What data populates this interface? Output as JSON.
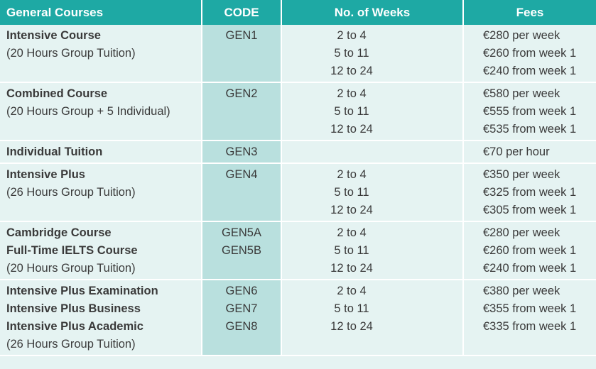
{
  "header": {
    "course": "General Courses",
    "code": "CODE",
    "weeks": "No. of Weeks",
    "fees": "Fees"
  },
  "rows": [
    {
      "courses": [
        {
          "text": "Intensive Course",
          "bold": true
        },
        {
          "text": "(20 Hours Group Tuition)",
          "bold": false
        }
      ],
      "codes": [
        "GEN1"
      ],
      "weeks": [
        "2 to 4",
        "5 to 11",
        "12 to 24"
      ],
      "fees": [
        "€280 per week",
        "€260 from week 1",
        "€240 from week 1"
      ]
    },
    {
      "courses": [
        {
          "text": "Combined Course",
          "bold": true
        },
        {
          "text": "(20 Hours Group + 5 Individual)",
          "bold": false
        }
      ],
      "codes": [
        "GEN2"
      ],
      "weeks": [
        "2 to 4",
        "5 to 11",
        "12 to 24"
      ],
      "fees": [
        "€580 per week",
        "€555 from week 1",
        "€535 from week 1"
      ]
    },
    {
      "courses": [
        {
          "text": "Individual Tuition",
          "bold": true
        }
      ],
      "codes": [
        "GEN3"
      ],
      "weeks": [],
      "fees": [
        "€70 per hour"
      ]
    },
    {
      "courses": [
        {
          "text": "Intensive Plus",
          "bold": true
        },
        {
          "text": "(26 Hours Group Tuition)",
          "bold": false
        }
      ],
      "codes": [
        "GEN4"
      ],
      "weeks": [
        "2 to 4",
        "5 to 11",
        "12 to 24"
      ],
      "fees": [
        "€350 per week",
        "€325 from week 1",
        "€305 from week 1"
      ]
    },
    {
      "courses": [
        {
          "text": "Cambridge Course",
          "bold": true
        },
        {
          "text": "Full-Time IELTS Course",
          "bold": true
        },
        {
          "text": "(20 Hours Group Tuition)",
          "bold": false
        }
      ],
      "codes": [
        "GEN5A",
        "GEN5B"
      ],
      "weeks": [
        "2 to 4",
        "5 to 11",
        "12 to 24"
      ],
      "fees": [
        "€280 per week",
        "€260 from week 1",
        "€240 from week 1"
      ]
    },
    {
      "courses": [
        {
          "text": "Intensive Plus Examination",
          "bold": true
        },
        {
          "text": "Intensive Plus Business",
          "bold": true
        },
        {
          "text": "Intensive Plus Academic",
          "bold": true
        },
        {
          "text": "(26 Hours Group Tuition)",
          "bold": false
        }
      ],
      "codes": [
        "GEN6",
        "GEN7",
        "GEN8"
      ],
      "weeks": [
        "2 to 4",
        "5 to 11",
        "12 to 24"
      ],
      "fees": [
        "€380 per week",
        "€355 from week 1",
        "€335 from week 1"
      ]
    }
  ]
}
